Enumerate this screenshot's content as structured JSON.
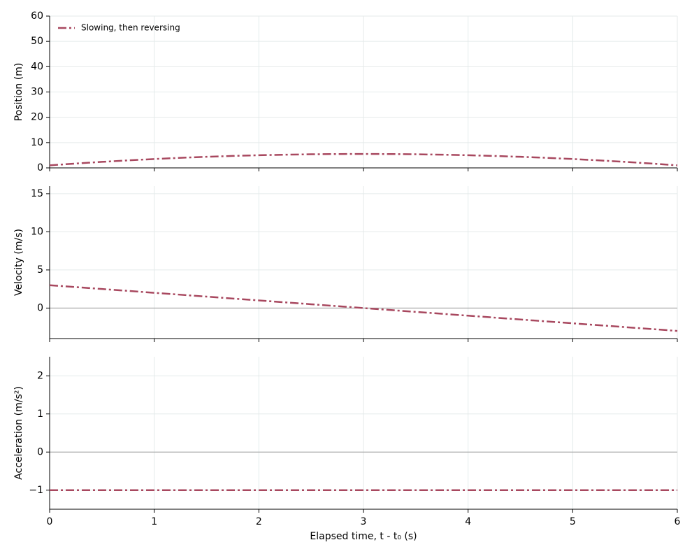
{
  "chart_data": [
    {
      "type": "line",
      "ylabel": "Position (m)",
      "legend": "upper left",
      "x": [
        0,
        0.25,
        0.5,
        0.75,
        1,
        1.25,
        1.5,
        1.75,
        2,
        2.25,
        2.5,
        2.75,
        3,
        3.25,
        3.5,
        3.75,
        4,
        4.25,
        4.5,
        4.75,
        5,
        5.25,
        5.5,
        5.75,
        6
      ],
      "series": [
        {
          "name": "Slowing, then reversing",
          "color": "#a8485f",
          "values": [
            1,
            1.71875,
            2.375,
            2.96875,
            3.5,
            3.96875,
            4.375,
            4.71875,
            5,
            5.21875,
            5.375,
            5.46875,
            5.5,
            5.46875,
            5.375,
            5.21875,
            5,
            4.71875,
            4.375,
            3.96875,
            3.5,
            2.96875,
            2.375,
            1.71875,
            1
          ]
        }
      ],
      "ylim": [
        0,
        60
      ],
      "yticks": [
        0,
        10,
        20,
        30,
        40,
        50,
        60
      ],
      "grid": true
    },
    {
      "type": "line",
      "ylabel": "Velocity (m/s)",
      "zero_line": true,
      "x": [
        0,
        0.5,
        1,
        1.5,
        2,
        2.5,
        3,
        3.5,
        4,
        4.5,
        5,
        5.5,
        6
      ],
      "series": [
        {
          "color": "#a8485f",
          "values": [
            3,
            2.5,
            2,
            1.5,
            1,
            0.5,
            0,
            -0.5,
            -1,
            -1.5,
            -2,
            -2.5,
            -3
          ]
        }
      ],
      "ylim": [
        -4,
        16
      ],
      "yticks": [
        0,
        5,
        10,
        15
      ],
      "grid": true
    },
    {
      "type": "line",
      "ylabel": "Acceleration (m/s²)",
      "xlabel": "Elapsed time, t - t₀ (s)",
      "zero_line": true,
      "x": [
        0,
        6
      ],
      "series": [
        {
          "color": "#a8485f",
          "values": [
            -1,
            -1
          ]
        }
      ],
      "ylim": [
        -1.5,
        2.5
      ],
      "yticks": [
        {
          "value": -1,
          "label": "−1"
        },
        0,
        1,
        2
      ],
      "grid": true,
      "xlim": [
        0,
        6
      ],
      "xticks": [
        0,
        1,
        2,
        3,
        4,
        5,
        6
      ]
    }
  ]
}
